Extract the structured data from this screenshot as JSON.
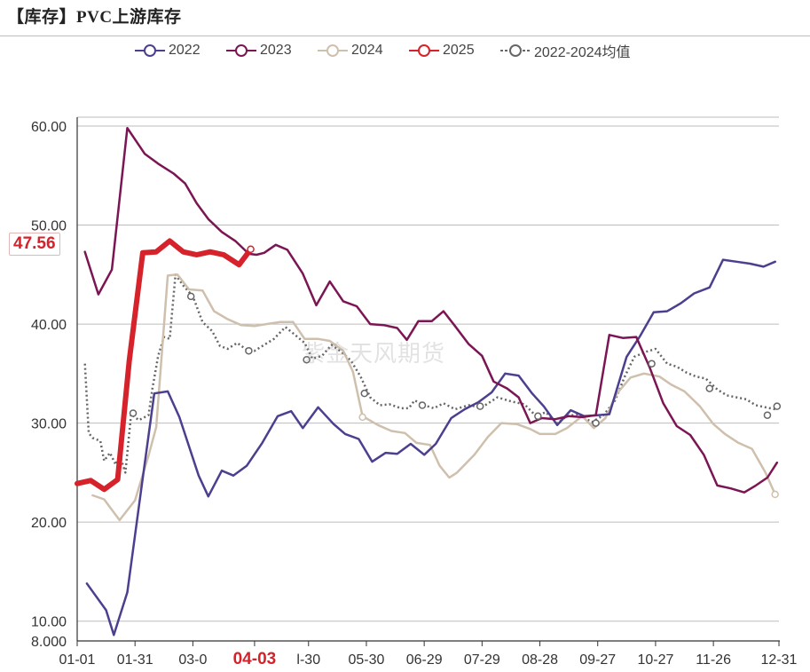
{
  "page": {
    "title": "【库存】PVC上游库存",
    "watermark": "紫金天风期货",
    "current_value": "47.56"
  },
  "colors": {
    "2022": "#4b3f8f",
    "2023": "#7b1553",
    "2024": "#cfc0ad",
    "2025": "#d6222a",
    "avg": "#666666",
    "grid": "#bdbdbd"
  },
  "chart_data": {
    "type": "line",
    "title": "【库存】PVC上游库存",
    "xlabel": "",
    "ylabel": "",
    "ylim": [
      8,
      61
    ],
    "yticks": [
      {
        "v": 8,
        "label": "8.000"
      },
      {
        "v": 10,
        "label": "10.00"
      },
      {
        "v": 20,
        "label": "20.00"
      },
      {
        "v": 30,
        "label": "30.00"
      },
      {
        "v": 40,
        "label": "40.00"
      },
      {
        "v": 50,
        "label": "50.00"
      },
      {
        "v": 60,
        "label": "60.00"
      }
    ],
    "xdomain": [
      0,
      364
    ],
    "xticks": [
      {
        "d": 0,
        "label": "01-01"
      },
      {
        "d": 30,
        "label": "01-31"
      },
      {
        "d": 60,
        "label": "03-0"
      },
      {
        "d": 92,
        "label": "04-03",
        "highlight": true
      },
      {
        "d": 120,
        "label": "l-30"
      },
      {
        "d": 150,
        "label": "05-30"
      },
      {
        "d": 180,
        "label": "06-29"
      },
      {
        "d": 210,
        "label": "07-29"
      },
      {
        "d": 240,
        "label": "08-28"
      },
      {
        "d": 270,
        "label": "09-27"
      },
      {
        "d": 300,
        "label": "10-27"
      },
      {
        "d": 330,
        "label": "11-26"
      },
      {
        "d": 364,
        "label": "12-31"
      }
    ],
    "grid": true,
    "legend_position": "top-center",
    "series": [
      {
        "name": "2022",
        "key": "2022",
        "width": 2.5,
        "points": [
          [
            5,
            13.8
          ],
          [
            15,
            11.1
          ],
          [
            19,
            8.6
          ],
          [
            26,
            12.9
          ],
          [
            33,
            23
          ],
          [
            40,
            33
          ],
          [
            47,
            33.2
          ],
          [
            53,
            30.6
          ],
          [
            63,
            24.7
          ],
          [
            68,
            22.6
          ],
          [
            75,
            25.2
          ],
          [
            81,
            24.7
          ],
          [
            88,
            25.7
          ],
          [
            96,
            28
          ],
          [
            104,
            30.7
          ],
          [
            111,
            31.2
          ],
          [
            117,
            29.5
          ],
          [
            125,
            31.6
          ],
          [
            133,
            29.9
          ],
          [
            139,
            28.9
          ],
          [
            146,
            28.4
          ],
          [
            153,
            26.1
          ],
          [
            160,
            27
          ],
          [
            166,
            26.9
          ],
          [
            173,
            27.9
          ],
          [
            180,
            26.8
          ],
          [
            186,
            27.9
          ],
          [
            194,
            30.5
          ],
          [
            201,
            31.4
          ],
          [
            208,
            32.1
          ],
          [
            215,
            33.1
          ],
          [
            222,
            35
          ],
          [
            229,
            34.8
          ],
          [
            236,
            33
          ],
          [
            242,
            31.7
          ],
          [
            249,
            29.8
          ],
          [
            256,
            31.3
          ],
          [
            263,
            30.7
          ],
          [
            270,
            30.8
          ],
          [
            276,
            30.9
          ],
          [
            285,
            36.7
          ],
          [
            292,
            38.8
          ],
          [
            299,
            41.2
          ],
          [
            306,
            41.3
          ],
          [
            313,
            42.1
          ],
          [
            320,
            43.1
          ],
          [
            328,
            43.7
          ],
          [
            335,
            46.5
          ],
          [
            342,
            46.3
          ],
          [
            349,
            46.1
          ],
          [
            356,
            45.8
          ],
          [
            362,
            46.3
          ]
        ]
      },
      {
        "name": "2023",
        "key": "2023",
        "width": 2.5,
        "points": [
          [
            4,
            47.3
          ],
          [
            11,
            43
          ],
          [
            18,
            45.5
          ],
          [
            26,
            59.8
          ],
          [
            35,
            57.2
          ],
          [
            42,
            56.2
          ],
          [
            50,
            55.2
          ],
          [
            56,
            54.2
          ],
          [
            62,
            52.2
          ],
          [
            68,
            50.6
          ],
          [
            75,
            49.3
          ],
          [
            82,
            48.4
          ],
          [
            89,
            47.1
          ],
          [
            93,
            47
          ],
          [
            97,
            47.2
          ],
          [
            103,
            48
          ],
          [
            109,
            47.5
          ],
          [
            117,
            45.1
          ],
          [
            124,
            41.9
          ],
          [
            131,
            44.3
          ],
          [
            138,
            42.3
          ],
          [
            145,
            41.8
          ],
          [
            152,
            40
          ],
          [
            159,
            39.9
          ],
          [
            166,
            39.6
          ],
          [
            171,
            38.4
          ],
          [
            177,
            40.3
          ],
          [
            184,
            40.3
          ],
          [
            190,
            41.3
          ],
          [
            196,
            39.8
          ],
          [
            203,
            38
          ],
          [
            210,
            36.8
          ],
          [
            216,
            34.2
          ],
          [
            223,
            33.5
          ],
          [
            229,
            32.6
          ],
          [
            235,
            30
          ],
          [
            241,
            30.5
          ],
          [
            248,
            30.4
          ],
          [
            255,
            30.7
          ],
          [
            262,
            30.6
          ],
          [
            269,
            30.8
          ],
          [
            276,
            38.9
          ],
          [
            283,
            38.6
          ],
          [
            290,
            38.7
          ],
          [
            297,
            35.6
          ],
          [
            304,
            32
          ],
          [
            311,
            29.7
          ],
          [
            318,
            28.8
          ],
          [
            325,
            26.8
          ],
          [
            332,
            23.7
          ],
          [
            339,
            23.4
          ],
          [
            346,
            23
          ],
          [
            352,
            23.7
          ],
          [
            358,
            24.5
          ],
          [
            363,
            26
          ]
        ]
      },
      {
        "name": "2024",
        "key": "2024",
        "width": 2.5,
        "points": [
          [
            8,
            22.7
          ],
          [
            14,
            22.3
          ],
          [
            17,
            21.5
          ],
          [
            22,
            20.2
          ],
          [
            30,
            22.2
          ],
          [
            37,
            26.7
          ],
          [
            41,
            29.6
          ],
          [
            47,
            44.9
          ],
          [
            52,
            45
          ],
          [
            58,
            43.5
          ],
          [
            65,
            43.4
          ],
          [
            71,
            41.3
          ],
          [
            78,
            40.5
          ],
          [
            85,
            39.9
          ],
          [
            92,
            39.8
          ],
          [
            98,
            40
          ],
          [
            105,
            40.2
          ],
          [
            112,
            40.2
          ],
          [
            118,
            38.5
          ],
          [
            125,
            38.5
          ],
          [
            131,
            38.3
          ],
          [
            138,
            37.3
          ],
          [
            143,
            35.2
          ],
          [
            148,
            30.7
          ],
          [
            156,
            29.8
          ],
          [
            163,
            29.2
          ],
          [
            170,
            29
          ],
          [
            176,
            28
          ],
          [
            183,
            27.8
          ],
          [
            188,
            25.7
          ],
          [
            193,
            24.5
          ],
          [
            197,
            25
          ],
          [
            206,
            26.8
          ],
          [
            213,
            28.6
          ],
          [
            220,
            30
          ],
          [
            228,
            29.9
          ],
          [
            235,
            29.4
          ],
          [
            240,
            28.9
          ],
          [
            248,
            28.9
          ],
          [
            254,
            29.5
          ],
          [
            262,
            30.7
          ],
          [
            268,
            29.5
          ],
          [
            274,
            30.5
          ],
          [
            280,
            33
          ],
          [
            287,
            34.6
          ],
          [
            294,
            35
          ],
          [
            302,
            34.7
          ],
          [
            308,
            33.9
          ],
          [
            315,
            33.2
          ],
          [
            323,
            31.7
          ],
          [
            330,
            29.9
          ],
          [
            336,
            28.9
          ],
          [
            343,
            28
          ],
          [
            350,
            27.4
          ],
          [
            357,
            25
          ],
          [
            362,
            22.8
          ]
        ]
      },
      {
        "name": "2025",
        "key": "2025",
        "width": 6,
        "points": [
          [
            0,
            23.9
          ],
          [
            7,
            24.2
          ],
          [
            14,
            23.3
          ],
          [
            21,
            24.3
          ],
          [
            27,
            36.3
          ],
          [
            34,
            47.2
          ],
          [
            41,
            47.3
          ],
          [
            48,
            48.4
          ],
          [
            55,
            47.3
          ],
          [
            62,
            47
          ],
          [
            69,
            47.3
          ],
          [
            76,
            47
          ],
          [
            84,
            46
          ],
          [
            90,
            47.56
          ]
        ]
      },
      {
        "name": "2022-2024均值",
        "key": "avg",
        "width": 2.5,
        "dash": "2,3",
        "points": [
          [
            4,
            36
          ],
          [
            6,
            29
          ],
          [
            8,
            28.5
          ],
          [
            12,
            28.2
          ],
          [
            14,
            26.2
          ],
          [
            17,
            27
          ],
          [
            20,
            25.8
          ],
          [
            22,
            26.8
          ],
          [
            25,
            25
          ],
          [
            28,
            30.9
          ],
          [
            32,
            30.3
          ],
          [
            37,
            30.8
          ],
          [
            39,
            33.5
          ],
          [
            42,
            36.8
          ],
          [
            45,
            38.7
          ],
          [
            48,
            38.5
          ],
          [
            51,
            45
          ],
          [
            55,
            43.9
          ],
          [
            60,
            42.8
          ],
          [
            65,
            40.2
          ],
          [
            70,
            39.3
          ],
          [
            74,
            37.8
          ],
          [
            78,
            37.5
          ],
          [
            83,
            38.1
          ],
          [
            88,
            37.4
          ],
          [
            92,
            37.3
          ],
          [
            97,
            37.9
          ],
          [
            102,
            38.5
          ],
          [
            108,
            39.7
          ],
          [
            113,
            38.9
          ],
          [
            118,
            38.1
          ],
          [
            122,
            36.5
          ],
          [
            127,
            36.8
          ],
          [
            132,
            37.9
          ],
          [
            137,
            37.2
          ],
          [
            142,
            36.3
          ],
          [
            147,
            34.7
          ],
          [
            152,
            32.6
          ],
          [
            157,
            31.8
          ],
          [
            162,
            31.9
          ],
          [
            168,
            31.5
          ],
          [
            172,
            31.5
          ],
          [
            175,
            32.3
          ],
          [
            180,
            31.8
          ],
          [
            185,
            31.5
          ],
          [
            190,
            32
          ],
          [
            196,
            31.4
          ],
          [
            203,
            31.8
          ],
          [
            210,
            31.6
          ],
          [
            218,
            32.6
          ],
          [
            225,
            32.2
          ],
          [
            232,
            31.9
          ],
          [
            238,
            30.7
          ],
          [
            243,
            31.1
          ],
          [
            249,
            30
          ],
          [
            254,
            30.7
          ],
          [
            260,
            30.9
          ],
          [
            267,
            30.1
          ],
          [
            273,
            30.8
          ],
          [
            279,
            32.3
          ],
          [
            284,
            34.7
          ],
          [
            289,
            36.7
          ],
          [
            295,
            37.2
          ],
          [
            300,
            37.5
          ],
          [
            306,
            36
          ],
          [
            311,
            35.7
          ],
          [
            316,
            35.1
          ],
          [
            321,
            34.7
          ],
          [
            326,
            34.5
          ],
          [
            332,
            33.4
          ],
          [
            337,
            32.8
          ],
          [
            342,
            32.6
          ],
          [
            347,
            32.4
          ],
          [
            352,
            31.8
          ],
          [
            357,
            31.6
          ],
          [
            362,
            31.4
          ],
          [
            364,
            31.7
          ]
        ]
      }
    ],
    "markers": [
      {
        "series": "avg",
        "d": 29,
        "v": 31
      },
      {
        "series": "avg",
        "d": 59,
        "v": 42.8
      },
      {
        "series": "avg",
        "d": 89,
        "v": 37.3
      },
      {
        "series": "avg",
        "d": 119,
        "v": 36.4
      },
      {
        "series": "avg",
        "d": 149,
        "v": 33
      },
      {
        "series": "avg",
        "d": 179,
        "v": 31.8
      },
      {
        "series": "avg",
        "d": 209,
        "v": 31.7
      },
      {
        "series": "avg",
        "d": 239,
        "v": 30.7
      },
      {
        "series": "avg",
        "d": 269,
        "v": 30
      },
      {
        "series": "avg",
        "d": 298,
        "v": 36
      },
      {
        "series": "avg",
        "d": 328,
        "v": 33.5
      },
      {
        "series": "avg",
        "d": 358,
        "v": 30.8
      },
      {
        "series": "avg",
        "d": 363,
        "v": 31.7
      },
      {
        "series": "2024",
        "d": 148,
        "v": 30.6
      },
      {
        "series": "2024",
        "d": 362,
        "v": 22.8
      },
      {
        "series": "2025",
        "d": 90,
        "v": 47.56
      }
    ]
  }
}
